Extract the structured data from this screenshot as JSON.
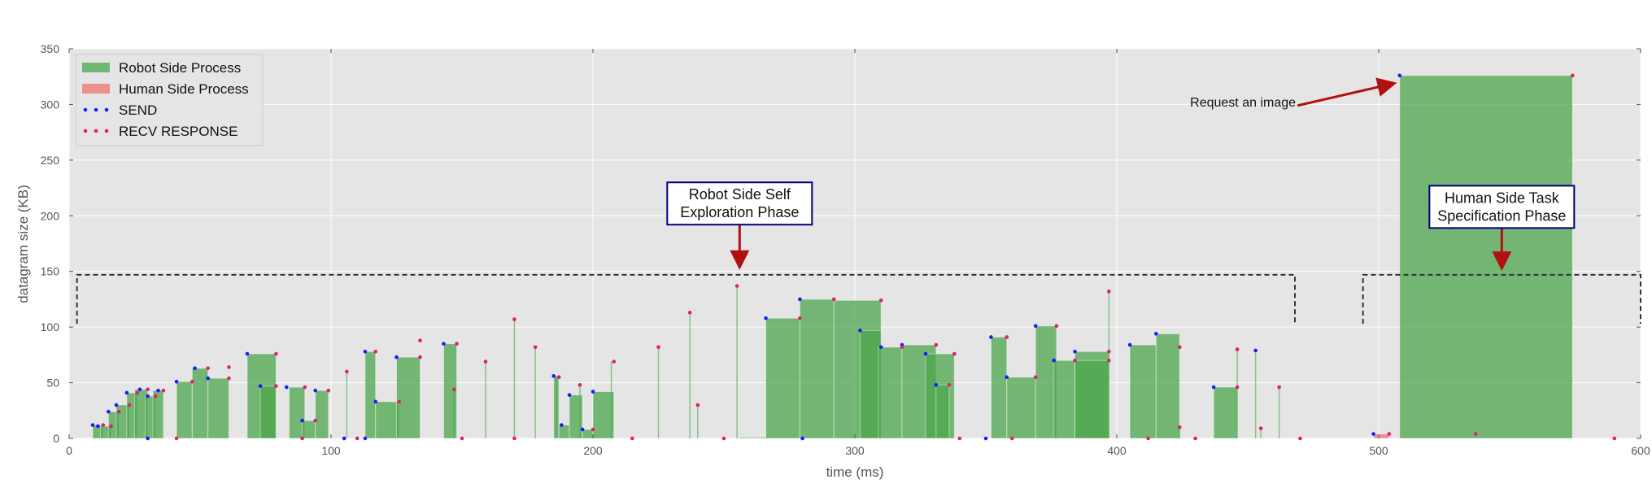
{
  "chart_data": {
    "type": "bar",
    "title": "",
    "xlabel": "time (ms)",
    "ylabel": "datagram size (KB)",
    "xlim": [
      0,
      600
    ],
    "ylim": [
      0,
      350
    ],
    "xticks": [
      0,
      100,
      200,
      300,
      400,
      500,
      600
    ],
    "yticks": [
      0,
      50,
      100,
      150,
      200,
      250,
      300,
      350
    ],
    "grid": true,
    "legend_position": "top-left",
    "legend": [
      {
        "label": "Robot Side Process",
        "kind": "patch",
        "color": "#4ca64c"
      },
      {
        "label": "Human Side Process",
        "kind": "patch",
        "color": "#f07070"
      },
      {
        "label": "SEND",
        "kind": "dots",
        "color": "#1a1aff"
      },
      {
        "label": "RECV RESPONSE",
        "kind": "dots",
        "color": "#e0206e"
      }
    ],
    "colors": {
      "robot": "#4ca64c",
      "human": "#f07070",
      "send": "#1a1aff",
      "recv": "#e0206e",
      "arrow": "#b01010",
      "box_border": "#000080",
      "panel": "#e5e5e5"
    },
    "series": [
      {
        "name": "Robot Side Process",
        "intervals": [
          [
            9,
            13,
            12
          ],
          [
            12,
            16,
            11
          ],
          [
            15,
            19,
            24
          ],
          [
            18,
            23,
            30
          ],
          [
            22,
            26,
            41
          ],
          [
            25,
            30,
            44
          ],
          [
            29,
            33,
            38
          ],
          [
            32,
            36,
            43
          ],
          [
            41,
            47,
            51
          ],
          [
            47,
            53,
            63
          ],
          [
            53,
            61,
            54
          ],
          [
            68,
            79,
            76
          ],
          [
            73,
            79,
            47
          ],
          [
            84,
            90,
            46
          ],
          [
            89,
            94,
            16
          ],
          [
            94,
            99,
            43
          ],
          [
            113,
            117,
            78
          ],
          [
            117,
            126,
            33
          ],
          [
            125,
            134,
            73
          ],
          [
            143,
            148,
            85
          ],
          [
            185,
            187,
            56
          ],
          [
            187,
            191,
            12
          ],
          [
            191,
            196,
            39
          ],
          [
            196,
            200,
            8
          ],
          [
            200,
            208,
            42
          ],
          [
            256,
            268,
            1
          ],
          [
            266,
            279,
            108
          ],
          [
            279,
            292,
            125
          ],
          [
            292,
            310,
            124
          ],
          [
            302,
            310,
            97
          ],
          [
            309,
            318,
            82
          ],
          [
            318,
            331,
            84
          ],
          [
            327,
            338,
            76
          ],
          [
            331,
            336,
            48
          ],
          [
            352,
            358,
            91
          ],
          [
            358,
            369,
            55
          ],
          [
            369,
            377,
            101
          ],
          [
            376,
            384,
            70
          ],
          [
            384,
            397,
            78
          ],
          [
            384,
            397,
            70
          ],
          [
            405,
            415,
            84
          ],
          [
            415,
            424,
            94
          ],
          [
            437,
            446,
            46
          ]
        ],
        "spikes": [
          [
            106,
            60
          ],
          [
            147,
            44
          ],
          [
            159,
            69
          ],
          [
            170,
            107
          ],
          [
            178,
            82
          ],
          [
            186,
            55
          ],
          [
            195,
            48
          ],
          [
            207,
            69
          ],
          [
            225,
            82
          ],
          [
            237,
            113
          ],
          [
            240,
            30
          ],
          [
            255,
            137
          ],
          [
            397,
            132
          ],
          [
            424,
            10
          ],
          [
            446,
            80
          ],
          [
            453,
            79
          ],
          [
            455,
            9
          ],
          [
            462,
            46
          ]
        ]
      },
      {
        "name": "Human Side Process",
        "intervals": [
          [
            498,
            504,
            4
          ]
        ]
      },
      {
        "name": "Robot Side Process",
        "intervals": [
          [
            508,
            574,
            326
          ]
        ]
      }
    ],
    "send_points": [
      [
        9,
        12
      ],
      [
        11,
        11
      ],
      [
        15,
        24
      ],
      [
        18,
        30
      ],
      [
        22,
        41
      ],
      [
        27,
        44
      ],
      [
        30,
        38
      ],
      [
        34,
        43
      ],
      [
        41,
        51
      ],
      [
        48,
        63
      ],
      [
        53,
        54
      ],
      [
        68,
        76
      ],
      [
        73,
        47
      ],
      [
        83,
        46
      ],
      [
        89,
        16
      ],
      [
        94,
        43
      ],
      [
        113,
        78
      ],
      [
        117,
        33
      ],
      [
        125,
        73
      ],
      [
        143,
        85
      ],
      [
        185,
        56
      ],
      [
        188,
        12
      ],
      [
        191,
        39
      ],
      [
        196,
        8
      ],
      [
        200,
        42
      ],
      [
        266,
        108
      ],
      [
        279,
        125
      ],
      [
        302,
        97
      ],
      [
        310,
        82
      ],
      [
        318,
        84
      ],
      [
        327,
        76
      ],
      [
        331,
        48
      ],
      [
        352,
        91
      ],
      [
        358,
        55
      ],
      [
        369,
        101
      ],
      [
        376,
        70
      ],
      [
        384,
        78
      ],
      [
        405,
        84
      ],
      [
        415,
        94
      ],
      [
        437,
        46
      ],
      [
        453,
        79
      ],
      [
        498,
        4
      ],
      [
        508,
        326
      ],
      [
        30,
        0
      ],
      [
        105,
        0
      ],
      [
        113,
        0
      ],
      [
        280,
        0
      ],
      [
        350,
        0
      ]
    ],
    "recv_points": [
      [
        13,
        12
      ],
      [
        16,
        11
      ],
      [
        19,
        24
      ],
      [
        23,
        30
      ],
      [
        26,
        41
      ],
      [
        30,
        44
      ],
      [
        33,
        38
      ],
      [
        36,
        43
      ],
      [
        47,
        51
      ],
      [
        53,
        63
      ],
      [
        61,
        54
      ],
      [
        61,
        64
      ],
      [
        79,
        76
      ],
      [
        79,
        47
      ],
      [
        90,
        46
      ],
      [
        94,
        16
      ],
      [
        99,
        43
      ],
      [
        106,
        60
      ],
      [
        117,
        78
      ],
      [
        126,
        33
      ],
      [
        134,
        73
      ],
      [
        134,
        88
      ],
      [
        148,
        85
      ],
      [
        147,
        44
      ],
      [
        159,
        69
      ],
      [
        170,
        107
      ],
      [
        178,
        82
      ],
      [
        187,
        55
      ],
      [
        195,
        48
      ],
      [
        200,
        8
      ],
      [
        208,
        69
      ],
      [
        225,
        82
      ],
      [
        237,
        113
      ],
      [
        240,
        30
      ],
      [
        255,
        137
      ],
      [
        279,
        108
      ],
      [
        292,
        125
      ],
      [
        310,
        124
      ],
      [
        318,
        82
      ],
      [
        331,
        84
      ],
      [
        338,
        76
      ],
      [
        336,
        48
      ],
      [
        358,
        91
      ],
      [
        369,
        55
      ],
      [
        377,
        101
      ],
      [
        384,
        70
      ],
      [
        397,
        78
      ],
      [
        397,
        70
      ],
      [
        397,
        132
      ],
      [
        424,
        82
      ],
      [
        424,
        10
      ],
      [
        446,
        80
      ],
      [
        446,
        46
      ],
      [
        455,
        9
      ],
      [
        462,
        46
      ],
      [
        504,
        4
      ],
      [
        537,
        4
      ],
      [
        574,
        326
      ],
      [
        41,
        0
      ],
      [
        89,
        0
      ],
      [
        110,
        0
      ],
      [
        150,
        0
      ],
      [
        170,
        0
      ],
      [
        215,
        0
      ],
      [
        250,
        0
      ],
      [
        340,
        0
      ],
      [
        360,
        0
      ],
      [
        412,
        0
      ],
      [
        430,
        0
      ],
      [
        470,
        0
      ],
      [
        590,
        0
      ]
    ],
    "phase_brackets": [
      {
        "x0": 3,
        "x1": 468,
        "y": 147,
        "y_low": 103
      },
      {
        "x0": 494,
        "x1": 600,
        "y": 147,
        "y_low": 103
      }
    ],
    "annotations": [
      {
        "id": "self-exploration",
        "lines": [
          "Robot Side Self",
          "Exploration Phase"
        ],
        "box_x": 256,
        "box_y": 211,
        "arrow_to": [
          256,
          150
        ]
      },
      {
        "id": "task-specification",
        "lines": [
          "Human Side Task",
          "Specification Phase"
        ],
        "box_x": 547,
        "box_y": 208,
        "arrow_to": [
          547,
          149
        ]
      },
      {
        "id": "request-image",
        "text": "Request an image",
        "text_x": 428,
        "text_y": 298,
        "arrow_from": [
          469,
          299
        ],
        "arrow_to": [
          507,
          320
        ]
      }
    ]
  }
}
